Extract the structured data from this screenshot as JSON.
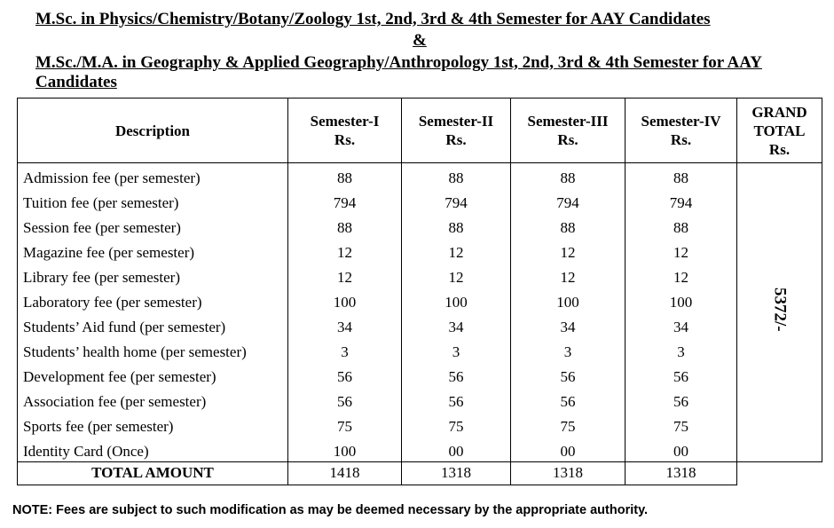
{
  "heading": {
    "lines": [
      "M.Sc. in Physics/Chemistry/Botany/Zoology 1st, 2nd, 3rd & 4th Semester for AAY Candidates",
      "&",
      "M.Sc./M.A. in Geography & Applied Geography/Anthropology 1st, 2nd, 3rd & 4th Semester for AAY",
      "Candidates"
    ]
  },
  "table": {
    "columns": [
      [
        "Description"
      ],
      [
        "Semester-I",
        "Rs."
      ],
      [
        "Semester-II",
        "Rs."
      ],
      [
        "Semester-III",
        "Rs."
      ],
      [
        "Semester-IV",
        "Rs."
      ],
      [
        "GRAND",
        "TOTAL",
        "Rs."
      ]
    ],
    "rows": [
      [
        "Admission fee (per semester)",
        "88",
        "88",
        "88",
        "88"
      ],
      [
        "Tuition fee (per semester)",
        "794",
        "794",
        "794",
        "794"
      ],
      [
        "Session fee (per semester)",
        "88",
        "88",
        "88",
        "88"
      ],
      [
        "Magazine fee (per semester)",
        "12",
        "12",
        "12",
        "12"
      ],
      [
        "Library fee (per semester)",
        "12",
        "12",
        "12",
        "12"
      ],
      [
        "Laboratory fee (per semester)",
        "100",
        "100",
        "100",
        "100"
      ],
      [
        "Students’ Aid fund (per semester)",
        "34",
        "34",
        "34",
        "34"
      ],
      [
        "Students’ health home (per semester)",
        "3",
        "3",
        "3",
        "3"
      ],
      [
        "Development fee (per semester)",
        "56",
        "56",
        "56",
        "56"
      ],
      [
        "Association fee (per semester)",
        "56",
        "56",
        "56",
        "56"
      ],
      [
        "Sports fee (per semester)",
        "75",
        "75",
        "75",
        "75"
      ],
      [
        "Identity Card (Once)",
        "100",
        "00",
        "00",
        "00"
      ]
    ],
    "grand_total": "5372/-",
    "total_row": [
      "TOTAL AMOUNT",
      "1418",
      "1318",
      "1318",
      "1318"
    ]
  },
  "note": "NOTE:  Fees are subject to such modification as may be deemed necessary by the appropriate authority."
}
